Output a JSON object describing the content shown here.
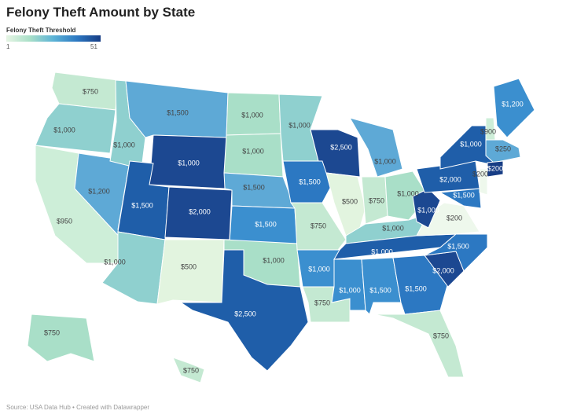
{
  "header": {
    "title": "Felony Theft Amount by State"
  },
  "legend": {
    "label": "Felony Theft Threshold",
    "min": 1,
    "max": 51,
    "colors": [
      "#e6f5e4",
      "#a9dfc8",
      "#5cb3d6",
      "#2c78c2",
      "#173d85"
    ]
  },
  "states": [
    {
      "label": "$750",
      "value": 750,
      "color": "#c4e9d2"
    },
    {
      "label": "$1,000",
      "value": 1000,
      "color": "#8fd0cf"
    },
    {
      "label": "$950",
      "value": 950,
      "color": "#cdeed8"
    },
    {
      "label": "$1,200",
      "value": 1200,
      "color": "#5ea9d6"
    },
    {
      "label": "$1,000",
      "value": 1000,
      "color": "#8fd0cf"
    },
    {
      "label": "$1,500",
      "value": 1500,
      "color": "#5ea9d6"
    },
    {
      "label": "$1,000",
      "value": 1000,
      "color": "#1c4891"
    },
    {
      "label": "$1,500",
      "value": 1500,
      "color": "#1f5ea9"
    },
    {
      "label": "$2,000",
      "value": 2000,
      "color": "#1c4891"
    },
    {
      "label": "$1,000",
      "value": 1000,
      "color": "#8fd0cf"
    },
    {
      "label": "$500",
      "value": 500,
      "color": "#e2f4df"
    },
    {
      "label": "$1,000",
      "value": 1000,
      "color": "#a9dfc8"
    },
    {
      "label": "$1,000",
      "value": 1000,
      "color": "#a9dfc8"
    },
    {
      "label": "$1,500",
      "value": 1500,
      "color": "#5ea9d6"
    },
    {
      "label": "$1,500",
      "value": 1500,
      "color": "#3b8fcf"
    },
    {
      "label": "$1,000",
      "value": 1000,
      "color": "#a9dfc8"
    },
    {
      "label": "$2,500",
      "value": 2500,
      "color": "#1f5ea9"
    },
    {
      "label": "$1,000",
      "value": 1000,
      "color": "#8fd0cf"
    },
    {
      "label": "$1,500",
      "value": 1500,
      "color": "#2c78c2"
    },
    {
      "label": "$750",
      "value": 750,
      "color": "#c4e9d2"
    },
    {
      "label": "$1,000",
      "value": 1000,
      "color": "#3b8fcf"
    },
    {
      "label": "$750",
      "value": 750,
      "color": "#c4e9d2"
    },
    {
      "label": "$2,500",
      "value": 2500,
      "color": "#1c4891"
    },
    {
      "label": "$500",
      "value": 500,
      "color": "#e2f4df"
    },
    {
      "label": "$1,000",
      "value": 1000,
      "color": "#5ea9d6"
    },
    {
      "label": "$750",
      "value": 750,
      "color": "#c4e9d2"
    },
    {
      "label": "$1,000",
      "value": 1000,
      "color": "#a9dfc8"
    },
    {
      "label": "$1,000",
      "value": 1000,
      "color": "#8fd0cf"
    },
    {
      "label": "$1,000",
      "value": 1000,
      "color": "#1f5ea9"
    },
    {
      "label": "$1,000",
      "value": 1000,
      "color": "#3b8fcf"
    },
    {
      "label": "$1,500",
      "value": 1500,
      "color": "#3b8fcf"
    },
    {
      "label": "$1,500",
      "value": 1500,
      "color": "#2c78c2"
    },
    {
      "label": "$750",
      "value": 750,
      "color": "#c4e9d2"
    },
    {
      "label": "$2,000",
      "value": 2000,
      "color": "#1c4891"
    },
    {
      "label": "$1,500",
      "value": 1500,
      "color": "#2c78c2"
    },
    {
      "label": "$200",
      "value": 200,
      "color": "#eef8ec"
    },
    {
      "label": "$1,000",
      "value": 1000,
      "color": "#1c4891"
    },
    {
      "label": "$2,000",
      "value": 2000,
      "color": "#1f5ea9"
    },
    {
      "label": "$1,000",
      "value": 1000,
      "color": "#1f5ea9"
    },
    {
      "label": "$1,500",
      "value": 1500,
      "color": "#2c78c2"
    },
    {
      "label": "$200",
      "value": 200,
      "color": "#eef8ec"
    },
    {
      "label": "$900",
      "value": 900,
      "color": "#cdeed8"
    },
    {
      "label": "$1,200",
      "value": 1200,
      "color": "#3b8fcf"
    },
    {
      "label": "$250",
      "value": 250,
      "color": "#5ea9d6"
    },
    {
      "label": "$200",
      "value": 200,
      "color": "#173d85"
    },
    {
      "label": "$750",
      "value": 750,
      "color": "#a9dfc8"
    },
    {
      "label": "$750",
      "value": 750,
      "color": "#c4e9d2"
    }
  ],
  "footer": {
    "source": "Source: USA Data Hub • Created with Datawrapper"
  }
}
